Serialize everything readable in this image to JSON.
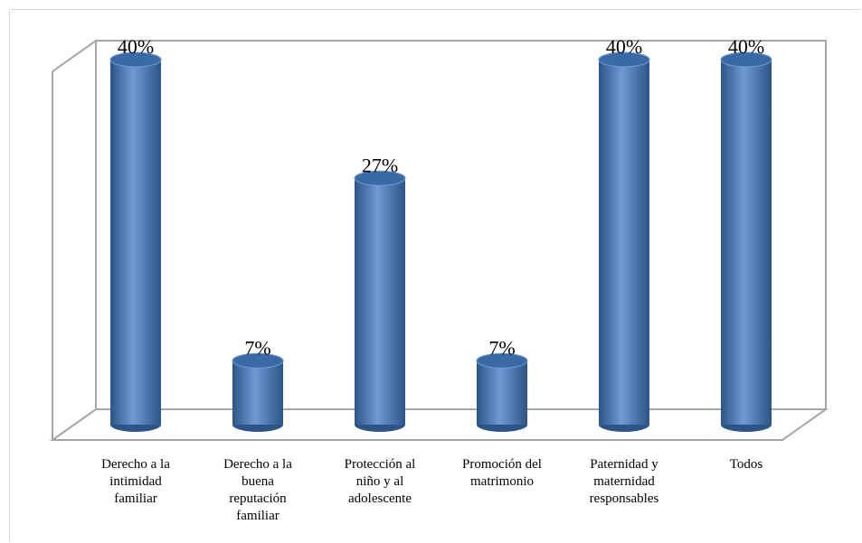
{
  "chart_data": {
    "type": "bar",
    "style": "3d-cylinder",
    "categories": [
      [
        "Derecho a la",
        "intimidad",
        "familiar"
      ],
      [
        "Derecho a la",
        "buena",
        "reputación",
        "familiar"
      ],
      [
        "Protección al",
        "niño y al",
        "adolescente"
      ],
      [
        "Promoción del",
        "matrimonio"
      ],
      [
        "Paternidad y",
        "maternidad",
        "responsables"
      ],
      [
        "Todos"
      ]
    ],
    "values": [
      40,
      7,
      27,
      7,
      40,
      40
    ],
    "value_labels": [
      "40%",
      "7%",
      "27%",
      "7%",
      "40%",
      "40%"
    ],
    "ylim": [
      0,
      40
    ],
    "grid": false,
    "legend": "none",
    "title": "",
    "xlabel": "",
    "ylabel": ""
  },
  "colors": {
    "bar_front": "#4a7ebb",
    "bar_highlight": "#6f9ad3",
    "bar_shadow": "#2c5487",
    "bar_top": "#3a6aa6",
    "wall_line": "#a6a6a6"
  }
}
